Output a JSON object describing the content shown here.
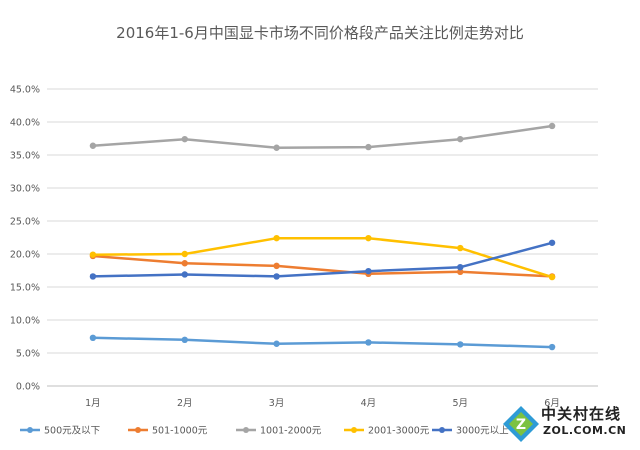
{
  "chart_data": {
    "type": "line",
    "title": "2016年1-6月中国显卡市场不同价格段产品关注比例走势对比",
    "categories": [
      "1月",
      "2月",
      "3月",
      "4月",
      "5月",
      "6月"
    ],
    "yticks": [
      "0.0%",
      "5.0%",
      "10.0%",
      "15.0%",
      "20.0%",
      "25.0%",
      "30.0%",
      "35.0%",
      "40.0%",
      "45.0%"
    ],
    "ylim": [
      0,
      45
    ],
    "grid": true,
    "legend_position": "bottom",
    "series": [
      {
        "name": "500元及以下",
        "color": "#5B9BD5",
        "values": [
          7.3,
          7.0,
          6.4,
          6.6,
          6.3,
          5.9
        ]
      },
      {
        "name": "501-1000元",
        "color": "#ED7D31",
        "values": [
          19.7,
          18.6,
          18.2,
          17.0,
          17.3,
          16.6
        ]
      },
      {
        "name": "1001-2000元",
        "color": "#A5A5A5",
        "values": [
          36.4,
          37.4,
          36.1,
          36.2,
          37.4,
          39.4
        ]
      },
      {
        "name": "2001-3000元",
        "color": "#FFC000",
        "values": [
          19.9,
          20.0,
          22.4,
          22.4,
          20.9,
          16.5
        ]
      },
      {
        "name": "3000元以上",
        "color": "#4472C4",
        "values": [
          16.6,
          16.9,
          16.6,
          17.4,
          18.0,
          21.7
        ]
      }
    ]
  },
  "watermark": {
    "cn": "中关村在线",
    "en": "ZOL.COM.CN"
  }
}
